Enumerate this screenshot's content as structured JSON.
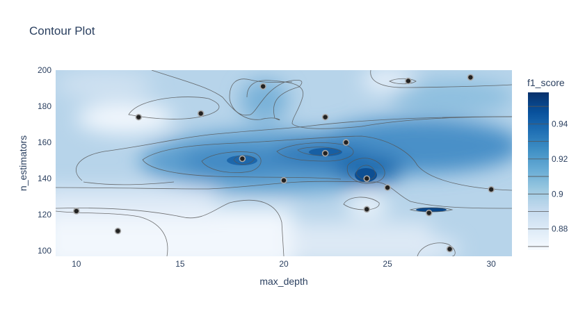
{
  "chart_data": {
    "type": "contour",
    "title": "Contour Plot",
    "xlabel": "max_depth",
    "ylabel": "n_estimators",
    "colorbar_title": "f1_score",
    "xlim": [
      9,
      31
    ],
    "ylim": [
      97,
      200
    ],
    "x_ticks": [
      10,
      15,
      20,
      25,
      30
    ],
    "y_ticks": [
      100,
      120,
      140,
      160,
      180,
      200
    ],
    "colorbar_range": [
      0.868,
      0.958
    ],
    "colorbar_ticks": [
      0.88,
      0.9,
      0.92,
      0.94
    ],
    "colorscale": [
      "#f7fbff",
      "#deebf7",
      "#c6dbef",
      "#9ecae1",
      "#6baed6",
      "#4292c6",
      "#2171b5",
      "#08519c",
      "#08306b"
    ],
    "points": [
      {
        "x": 10,
        "y": 122
      },
      {
        "x": 12,
        "y": 111
      },
      {
        "x": 13,
        "y": 174
      },
      {
        "x": 16,
        "y": 176
      },
      {
        "x": 18,
        "y": 151
      },
      {
        "x": 19,
        "y": 191
      },
      {
        "x": 20,
        "y": 139
      },
      {
        "x": 22,
        "y": 174
      },
      {
        "x": 22,
        "y": 154
      },
      {
        "x": 23,
        "y": 160
      },
      {
        "x": 24,
        "y": 140
      },
      {
        "x": 24,
        "y": 123
      },
      {
        "x": 25,
        "y": 135
      },
      {
        "x": 26,
        "y": 194
      },
      {
        "x": 27,
        "y": 121
      },
      {
        "x": 28,
        "y": 101
      },
      {
        "x": 29,
        "y": 196
      },
      {
        "x": 30,
        "y": 134
      }
    ]
  }
}
